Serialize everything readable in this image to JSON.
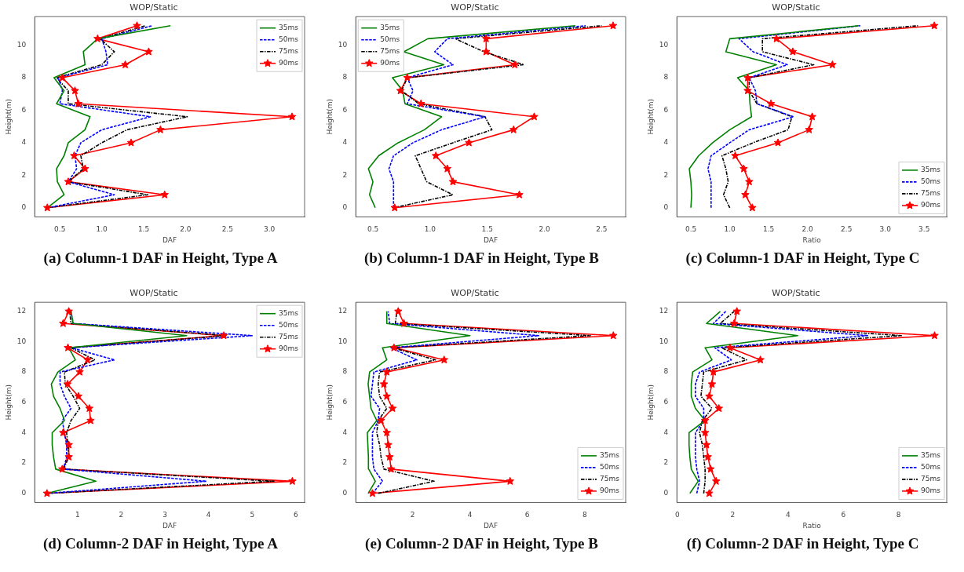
{
  "chart_data": [
    {
      "type": "line",
      "title": "WOP/Static",
      "xlabel": "DAF",
      "ylabel": "Height(m)",
      "legend": "top right",
      "annotations": [
        "(a) Column-1 DAF in Height, Type A"
      ],
      "xlim": [
        0.2,
        3.42
      ],
      "xticks": [
        {
          "value": 0.5,
          "label": "0.5"
        },
        {
          "value": 1,
          "label": "1.0"
        },
        {
          "value": 1.5,
          "label": "1.5"
        },
        {
          "value": 2,
          "label": "2.0"
        },
        {
          "value": 2.5,
          "label": "2.5"
        },
        {
          "value": 3,
          "label": "3.0"
        }
      ],
      "ylim": [
        -0.56,
        11.76
      ],
      "yticks": [
        0,
        2,
        4,
        6,
        8,
        10
      ],
      "series": [
        {
          "name": "35ms",
          "color": "#008000",
          "line_style": "solid",
          "marker": "none",
          "x": [
            0.35,
            0.55,
            0.47,
            0.46,
            0.55,
            0.6,
            0.8,
            0.86,
            0.46,
            0.55,
            0.43,
            0.8,
            0.78,
            0.95,
            1.82
          ],
          "values": [
            0,
            0.8,
            1.6,
            2.4,
            3.2,
            4.0,
            4.8,
            5.6,
            6.4,
            7.2,
            8.0,
            8.8,
            9.6,
            10.4,
            11.2
          ]
        },
        {
          "name": "50ms",
          "color": "#0000ff",
          "line_style": "dashed",
          "marker": "none",
          "x": [
            0.35,
            1.15,
            0.6,
            0.7,
            0.68,
            0.75,
            1.0,
            1.58,
            0.5,
            0.53,
            0.48,
            1.07,
            1.05,
            1.0,
            1.6
          ],
          "values": [
            0,
            0.8,
            1.6,
            2.4,
            3.2,
            4.0,
            4.8,
            5.6,
            6.4,
            7.2,
            8.0,
            8.8,
            9.6,
            10.4,
            11.2
          ]
        },
        {
          "name": "75ms",
          "color": "#000000",
          "line_style": "dashdot",
          "marker": "none",
          "x": [
            0.35,
            1.55,
            0.6,
            0.78,
            0.75,
            1.0,
            1.3,
            2.02,
            0.6,
            0.6,
            0.46,
            1.0,
            1.15,
            0.98,
            1.52
          ],
          "values": [
            0,
            0.8,
            1.6,
            2.4,
            3.2,
            4.0,
            4.8,
            5.6,
            6.4,
            7.2,
            8.0,
            8.8,
            9.6,
            10.4,
            11.2
          ]
        },
        {
          "name": "90ms",
          "color": "#ff0000",
          "line_style": "solid",
          "marker": "star",
          "x": [
            0.35,
            1.75,
            0.6,
            0.8,
            0.67,
            1.35,
            1.7,
            3.27,
            0.72,
            0.68,
            0.53,
            1.28,
            1.56,
            0.95,
            1.42
          ],
          "values": [
            0,
            0.8,
            1.6,
            2.4,
            3.2,
            4.0,
            4.8,
            5.6,
            6.4,
            7.2,
            8.0,
            8.8,
            9.6,
            10.4,
            11.2
          ]
        }
      ]
    },
    {
      "type": "line",
      "title": "WOP/Static",
      "xlabel": "DAF",
      "ylabel": "Height(m)",
      "legend": "top left",
      "annotations": [
        "(b) Column-1 DAF in Height, Type B"
      ],
      "xlim": [
        0.35,
        2.71
      ],
      "xticks": [
        {
          "value": 0.5,
          "label": "0.5"
        },
        {
          "value": 1,
          "label": "1.0"
        },
        {
          "value": 1.5,
          "label": "1.5"
        },
        {
          "value": 2,
          "label": "2.0"
        },
        {
          "value": 2.5,
          "label": "2.5"
        }
      ],
      "ylim": [
        -0.56,
        11.76
      ],
      "yticks": [
        0,
        2,
        4,
        6,
        8,
        10
      ],
      "series": [
        {
          "name": "35ms",
          "color": "#008000",
          "line_style": "solid",
          "marker": "none",
          "x": [
            0.52,
            0.47,
            0.5,
            0.46,
            0.55,
            0.72,
            0.95,
            1.1,
            0.78,
            0.76,
            0.67,
            1.12,
            0.77,
            0.98,
            2.27
          ],
          "values": [
            0,
            0.8,
            1.6,
            2.4,
            3.2,
            4.0,
            4.8,
            5.6,
            6.4,
            7.2,
            8.0,
            8.8,
            9.6,
            10.4,
            11.2
          ]
        },
        {
          "name": "50ms",
          "color": "#0000ff",
          "line_style": "dashed",
          "marker": "none",
          "x": [
            0.68,
            0.68,
            0.68,
            0.64,
            0.68,
            0.85,
            1.1,
            1.48,
            0.8,
            0.85,
            0.8,
            1.2,
            1.04,
            1.15,
            2.36
          ],
          "values": [
            0,
            0.8,
            1.6,
            2.4,
            3.2,
            4.0,
            4.8,
            5.6,
            6.4,
            7.2,
            8.0,
            8.8,
            9.6,
            10.4,
            11.2
          ]
        },
        {
          "name": "75ms",
          "color": "#000000",
          "line_style": "dashdot",
          "marker": "none",
          "x": [
            0.68,
            1.2,
            0.97,
            0.92,
            0.87,
            1.2,
            1.54,
            1.48,
            0.9,
            0.75,
            0.8,
            1.82,
            1.47,
            1.22,
            2.5
          ],
          "values": [
            0,
            0.8,
            1.6,
            2.4,
            3.2,
            4.0,
            4.8,
            5.6,
            6.4,
            7.2,
            8.0,
            8.8,
            9.6,
            10.4,
            11.2
          ]
        },
        {
          "name": "90ms",
          "color": "#ff0000",
          "line_style": "solid",
          "marker": "star",
          "x": [
            0.69,
            1.78,
            1.2,
            1.15,
            1.05,
            1.34,
            1.73,
            1.91,
            0.92,
            0.74,
            0.8,
            1.74,
            1.49,
            1.49,
            2.6
          ],
          "values": [
            0,
            0.8,
            1.6,
            2.4,
            3.2,
            4.0,
            4.8,
            5.6,
            6.4,
            7.2,
            8.0,
            8.8,
            9.6,
            10.4,
            11.2
          ]
        }
      ]
    },
    {
      "type": "line",
      "title": "WOP/Static",
      "xlabel": "Ratio",
      "ylabel": "Height(m)",
      "legend": "bottom right",
      "annotations": [
        "(c) Column-1 DAF in Height, Type C"
      ],
      "xlim": [
        0.32,
        3.79
      ],
      "xticks": [
        {
          "value": 0.5,
          "label": "0.5"
        },
        {
          "value": 1,
          "label": "1.0"
        },
        {
          "value": 1.5,
          "label": "1.5"
        },
        {
          "value": 2,
          "label": "2.0"
        },
        {
          "value": 2.5,
          "label": "2.5"
        },
        {
          "value": 3,
          "label": "3.0"
        },
        {
          "value": 3.5,
          "label": "3.5"
        }
      ],
      "ylim": [
        -0.56,
        11.76
      ],
      "yticks": [
        0,
        2,
        4,
        6,
        8,
        10
      ],
      "series": [
        {
          "name": "35ms",
          "color": "#008000",
          "line_style": "solid",
          "marker": "none",
          "x": [
            0.5,
            0.51,
            0.5,
            0.48,
            0.6,
            0.78,
            1.0,
            1.28,
            1.26,
            1.25,
            1.1,
            1.6,
            0.95,
            1.0,
            2.66
          ],
          "values": [
            0,
            0.8,
            1.6,
            2.4,
            3.2,
            4.0,
            4.8,
            5.6,
            6.4,
            7.2,
            8.0,
            8.8,
            9.6,
            10.4,
            11.2
          ]
        },
        {
          "name": "50ms",
          "color": "#0000ff",
          "line_style": "dashed",
          "marker": "none",
          "x": [
            0.76,
            0.76,
            0.76,
            0.72,
            0.76,
            1.0,
            1.25,
            1.82,
            1.35,
            1.33,
            1.25,
            1.74,
            1.3,
            1.12,
            2.68
          ],
          "values": [
            0,
            0.8,
            1.6,
            2.4,
            3.2,
            4.0,
            4.8,
            5.6,
            6.4,
            7.2,
            8.0,
            8.8,
            9.6,
            10.4,
            11.2
          ]
        },
        {
          "name": "75ms",
          "color": "#000000",
          "line_style": "dashdot",
          "marker": "none",
          "x": [
            1.0,
            0.92,
            0.98,
            0.95,
            0.9,
            1.3,
            1.75,
            1.8,
            1.35,
            1.25,
            1.25,
            2.08,
            1.42,
            1.42,
            3.42
          ],
          "values": [
            0,
            0.8,
            1.6,
            2.4,
            3.2,
            4.0,
            4.8,
            5.6,
            6.4,
            7.2,
            8.0,
            8.8,
            9.6,
            10.4,
            11.2
          ]
        },
        {
          "name": "90ms",
          "color": "#ff0000",
          "line_style": "solid",
          "marker": "star",
          "x": [
            1.29,
            1.2,
            1.25,
            1.18,
            1.07,
            1.62,
            2.02,
            2.06,
            1.53,
            1.23,
            1.23,
            2.32,
            1.81,
            1.6,
            3.63
          ],
          "values": [
            0,
            0.8,
            1.6,
            2.4,
            3.2,
            4.0,
            4.8,
            5.6,
            6.4,
            7.2,
            8.0,
            8.8,
            9.6,
            10.4,
            11.2
          ]
        }
      ]
    },
    {
      "type": "line",
      "title": "WOP/Static",
      "xlabel": "DAF",
      "ylabel": "Height(m)",
      "legend": "top right",
      "annotations": [
        "(d) Column-2 DAF in Height, Type A"
      ],
      "xlim": [
        0.02,
        6.2
      ],
      "xticks": [
        1,
        2,
        3,
        4,
        5,
        6
      ],
      "ylim": [
        -0.6,
        12.6
      ],
      "yticks": [
        0,
        2,
        4,
        6,
        8,
        10,
        12
      ],
      "series": [
        {
          "name": "35ms",
          "color": "#008000",
          "line_style": "solid",
          "marker": "none",
          "x": [
            0.3,
            1.42,
            0.5,
            0.45,
            0.42,
            0.42,
            0.7,
            0.6,
            0.45,
            0.4,
            0.55,
            0.95,
            0.8,
            3.5,
            0.9,
            0.85
          ],
          "values": [
            0,
            0.8,
            1.6,
            2.4,
            3.2,
            4.0,
            4.8,
            5.6,
            6.4,
            7.2,
            8.0,
            8.8,
            9.6,
            10.4,
            11.2,
            12.0
          ]
        },
        {
          "name": "50ms",
          "color": "#0000ff",
          "line_style": "dashed",
          "marker": "none",
          "x": [
            0.3,
            3.95,
            0.68,
            0.75,
            0.75,
            0.7,
            0.65,
            0.85,
            0.7,
            0.6,
            0.6,
            1.85,
            0.85,
            5.0,
            0.9,
            0.85
          ],
          "values": [
            0,
            0.8,
            1.6,
            2.4,
            3.2,
            4.0,
            4.8,
            5.6,
            6.4,
            7.2,
            8.0,
            8.8,
            9.6,
            10.4,
            11.2,
            12.0
          ]
        },
        {
          "name": "75ms",
          "color": "#000000",
          "line_style": "dashdot",
          "marker": "none",
          "x": [
            0.3,
            5.5,
            0.68,
            0.8,
            0.78,
            0.75,
            0.85,
            1.05,
            0.9,
            0.72,
            0.7,
            1.4,
            0.85,
            4.4,
            0.85,
            0.82
          ],
          "values": [
            0,
            0.8,
            1.6,
            2.4,
            3.2,
            4.0,
            4.8,
            5.6,
            6.4,
            7.2,
            8.0,
            8.8,
            9.6,
            10.4,
            11.2,
            12.0
          ]
        },
        {
          "name": "90ms",
          "color": "#ff0000",
          "line_style": "solid",
          "marker": "star",
          "x": [
            0.3,
            5.92,
            0.65,
            0.8,
            0.8,
            0.67,
            1.3,
            1.27,
            1.02,
            0.77,
            1.05,
            1.23,
            0.78,
            4.35,
            0.67,
            0.8
          ],
          "values": [
            0,
            0.8,
            1.6,
            2.4,
            3.2,
            4.0,
            4.8,
            5.6,
            6.4,
            7.2,
            8.0,
            8.8,
            9.6,
            10.4,
            11.2,
            12.0
          ]
        }
      ]
    },
    {
      "type": "line",
      "title": "WOP/Static",
      "xlabel": "DAF",
      "ylabel": "Height(m)",
      "legend": "bottom right",
      "annotations": [
        "(e) Column-2 DAF in Height, Type B"
      ],
      "xlim": [
        0.02,
        9.43
      ],
      "xticks": [
        2,
        4,
        6,
        8
      ],
      "ylim": [
        -0.6,
        12.6
      ],
      "yticks": [
        0,
        2,
        4,
        6,
        8,
        10,
        12
      ],
      "series": [
        {
          "name": "35ms",
          "color": "#008000",
          "line_style": "solid",
          "marker": "none",
          "x": [
            0.45,
            0.7,
            0.47,
            0.46,
            0.44,
            0.42,
            0.75,
            0.55,
            0.5,
            0.45,
            0.5,
            1.1,
            0.95,
            4.0,
            1.1,
            1.1
          ],
          "values": [
            0,
            0.8,
            1.6,
            2.4,
            3.2,
            4.0,
            4.8,
            5.6,
            6.4,
            7.2,
            8.0,
            8.8,
            9.6,
            10.4,
            11.2,
            12.0
          ]
        },
        {
          "name": "50ms",
          "color": "#0000ff",
          "line_style": "dashed",
          "marker": "none",
          "x": [
            0.6,
            0.95,
            0.65,
            0.6,
            0.6,
            0.6,
            0.8,
            0.85,
            0.55,
            0.6,
            0.65,
            2.15,
            1.25,
            6.4,
            1.2,
            1.15
          ],
          "values": [
            0,
            0.8,
            1.6,
            2.4,
            3.2,
            4.0,
            4.8,
            5.6,
            6.4,
            7.2,
            8.0,
            8.8,
            9.6,
            10.4,
            11.2,
            12.0
          ]
        },
        {
          "name": "75ms",
          "color": "#000000",
          "line_style": "dashdot",
          "marker": "none",
          "x": [
            0.8,
            2.75,
            1.0,
            0.9,
            0.85,
            0.75,
            0.8,
            1.1,
            0.85,
            0.8,
            0.85,
            2.8,
            1.3,
            8.2,
            1.4,
            1.45
          ],
          "values": [
            0,
            0.8,
            1.6,
            2.4,
            3.2,
            4.0,
            4.8,
            5.6,
            6.4,
            7.2,
            8.0,
            8.8,
            9.6,
            10.4,
            11.2,
            12.0
          ]
        },
        {
          "name": "90ms",
          "color": "#ff0000",
          "line_style": "solid",
          "marker": "star",
          "x": [
            0.6,
            5.4,
            1.25,
            1.2,
            1.15,
            1.1,
            0.9,
            1.3,
            1.1,
            1.0,
            1.1,
            3.1,
            1.35,
            9.0,
            1.7,
            1.5
          ],
          "values": [
            0,
            0.8,
            1.6,
            2.4,
            3.2,
            4.0,
            4.8,
            5.6,
            6.4,
            7.2,
            8.0,
            8.8,
            9.6,
            10.4,
            11.2,
            12.0
          ]
        }
      ]
    },
    {
      "type": "line",
      "title": "WOP/Static",
      "xlabel": "Ratio",
      "ylabel": "Height(m)",
      "legend": "bottom right",
      "annotations": [
        "(f) Column-2 DAF in Height, Type C"
      ],
      "xlim": [
        -0.02,
        9.74
      ],
      "xticks": [
        0,
        2,
        4,
        6,
        8
      ],
      "ylim": [
        -0.6,
        12.6
      ],
      "yticks": [
        0,
        2,
        4,
        6,
        8,
        10,
        12
      ],
      "series": [
        {
          "name": "35ms",
          "color": "#008000",
          "line_style": "solid",
          "marker": "none",
          "x": [
            0.45,
            0.75,
            0.5,
            0.45,
            0.42,
            0.42,
            1.0,
            0.65,
            0.5,
            0.5,
            0.55,
            1.25,
            1.0,
            4.35,
            1.05,
            1.55
          ],
          "values": [
            0,
            0.8,
            1.6,
            2.4,
            3.2,
            4.0,
            4.8,
            5.6,
            6.4,
            7.2,
            8.0,
            8.8,
            9.6,
            10.4,
            11.2,
            12.0
          ]
        },
        {
          "name": "50ms",
          "color": "#0000ff",
          "line_style": "dashed",
          "marker": "none",
          "x": [
            0.7,
            0.8,
            0.7,
            0.65,
            0.65,
            0.65,
            0.95,
            0.95,
            0.65,
            0.65,
            0.8,
            1.95,
            1.35,
            6.9,
            1.3,
            1.75
          ],
          "values": [
            0,
            0.8,
            1.6,
            2.4,
            3.2,
            4.0,
            4.8,
            5.6,
            6.4,
            7.2,
            8.0,
            8.8,
            9.6,
            10.4,
            11.2,
            12.0
          ]
        },
        {
          "name": "75ms",
          "color": "#000000",
          "line_style": "dashdot",
          "marker": "none",
          "x": [
            0.95,
            1.0,
            1.0,
            0.95,
            0.9,
            0.8,
            0.9,
            1.25,
            0.85,
            0.9,
            0.95,
            2.5,
            1.6,
            8.1,
            1.55,
            2.05
          ],
          "values": [
            0,
            0.8,
            1.6,
            2.4,
            3.2,
            4.0,
            4.8,
            5.6,
            6.4,
            7.2,
            8.0,
            8.8,
            9.6,
            10.4,
            11.2,
            12.0
          ]
        },
        {
          "name": "90ms",
          "color": "#ff0000",
          "line_style": "solid",
          "marker": "star",
          "x": [
            1.15,
            1.4,
            1.2,
            1.1,
            1.05,
            1.0,
            1.0,
            1.5,
            1.15,
            1.25,
            1.3,
            3.0,
            1.9,
            9.3,
            2.05,
            2.15
          ],
          "values": [
            0,
            0.8,
            1.6,
            2.4,
            3.2,
            4.0,
            4.8,
            5.6,
            6.4,
            7.2,
            8.0,
            8.8,
            9.6,
            10.4,
            11.2,
            12.0
          ]
        }
      ]
    }
  ]
}
